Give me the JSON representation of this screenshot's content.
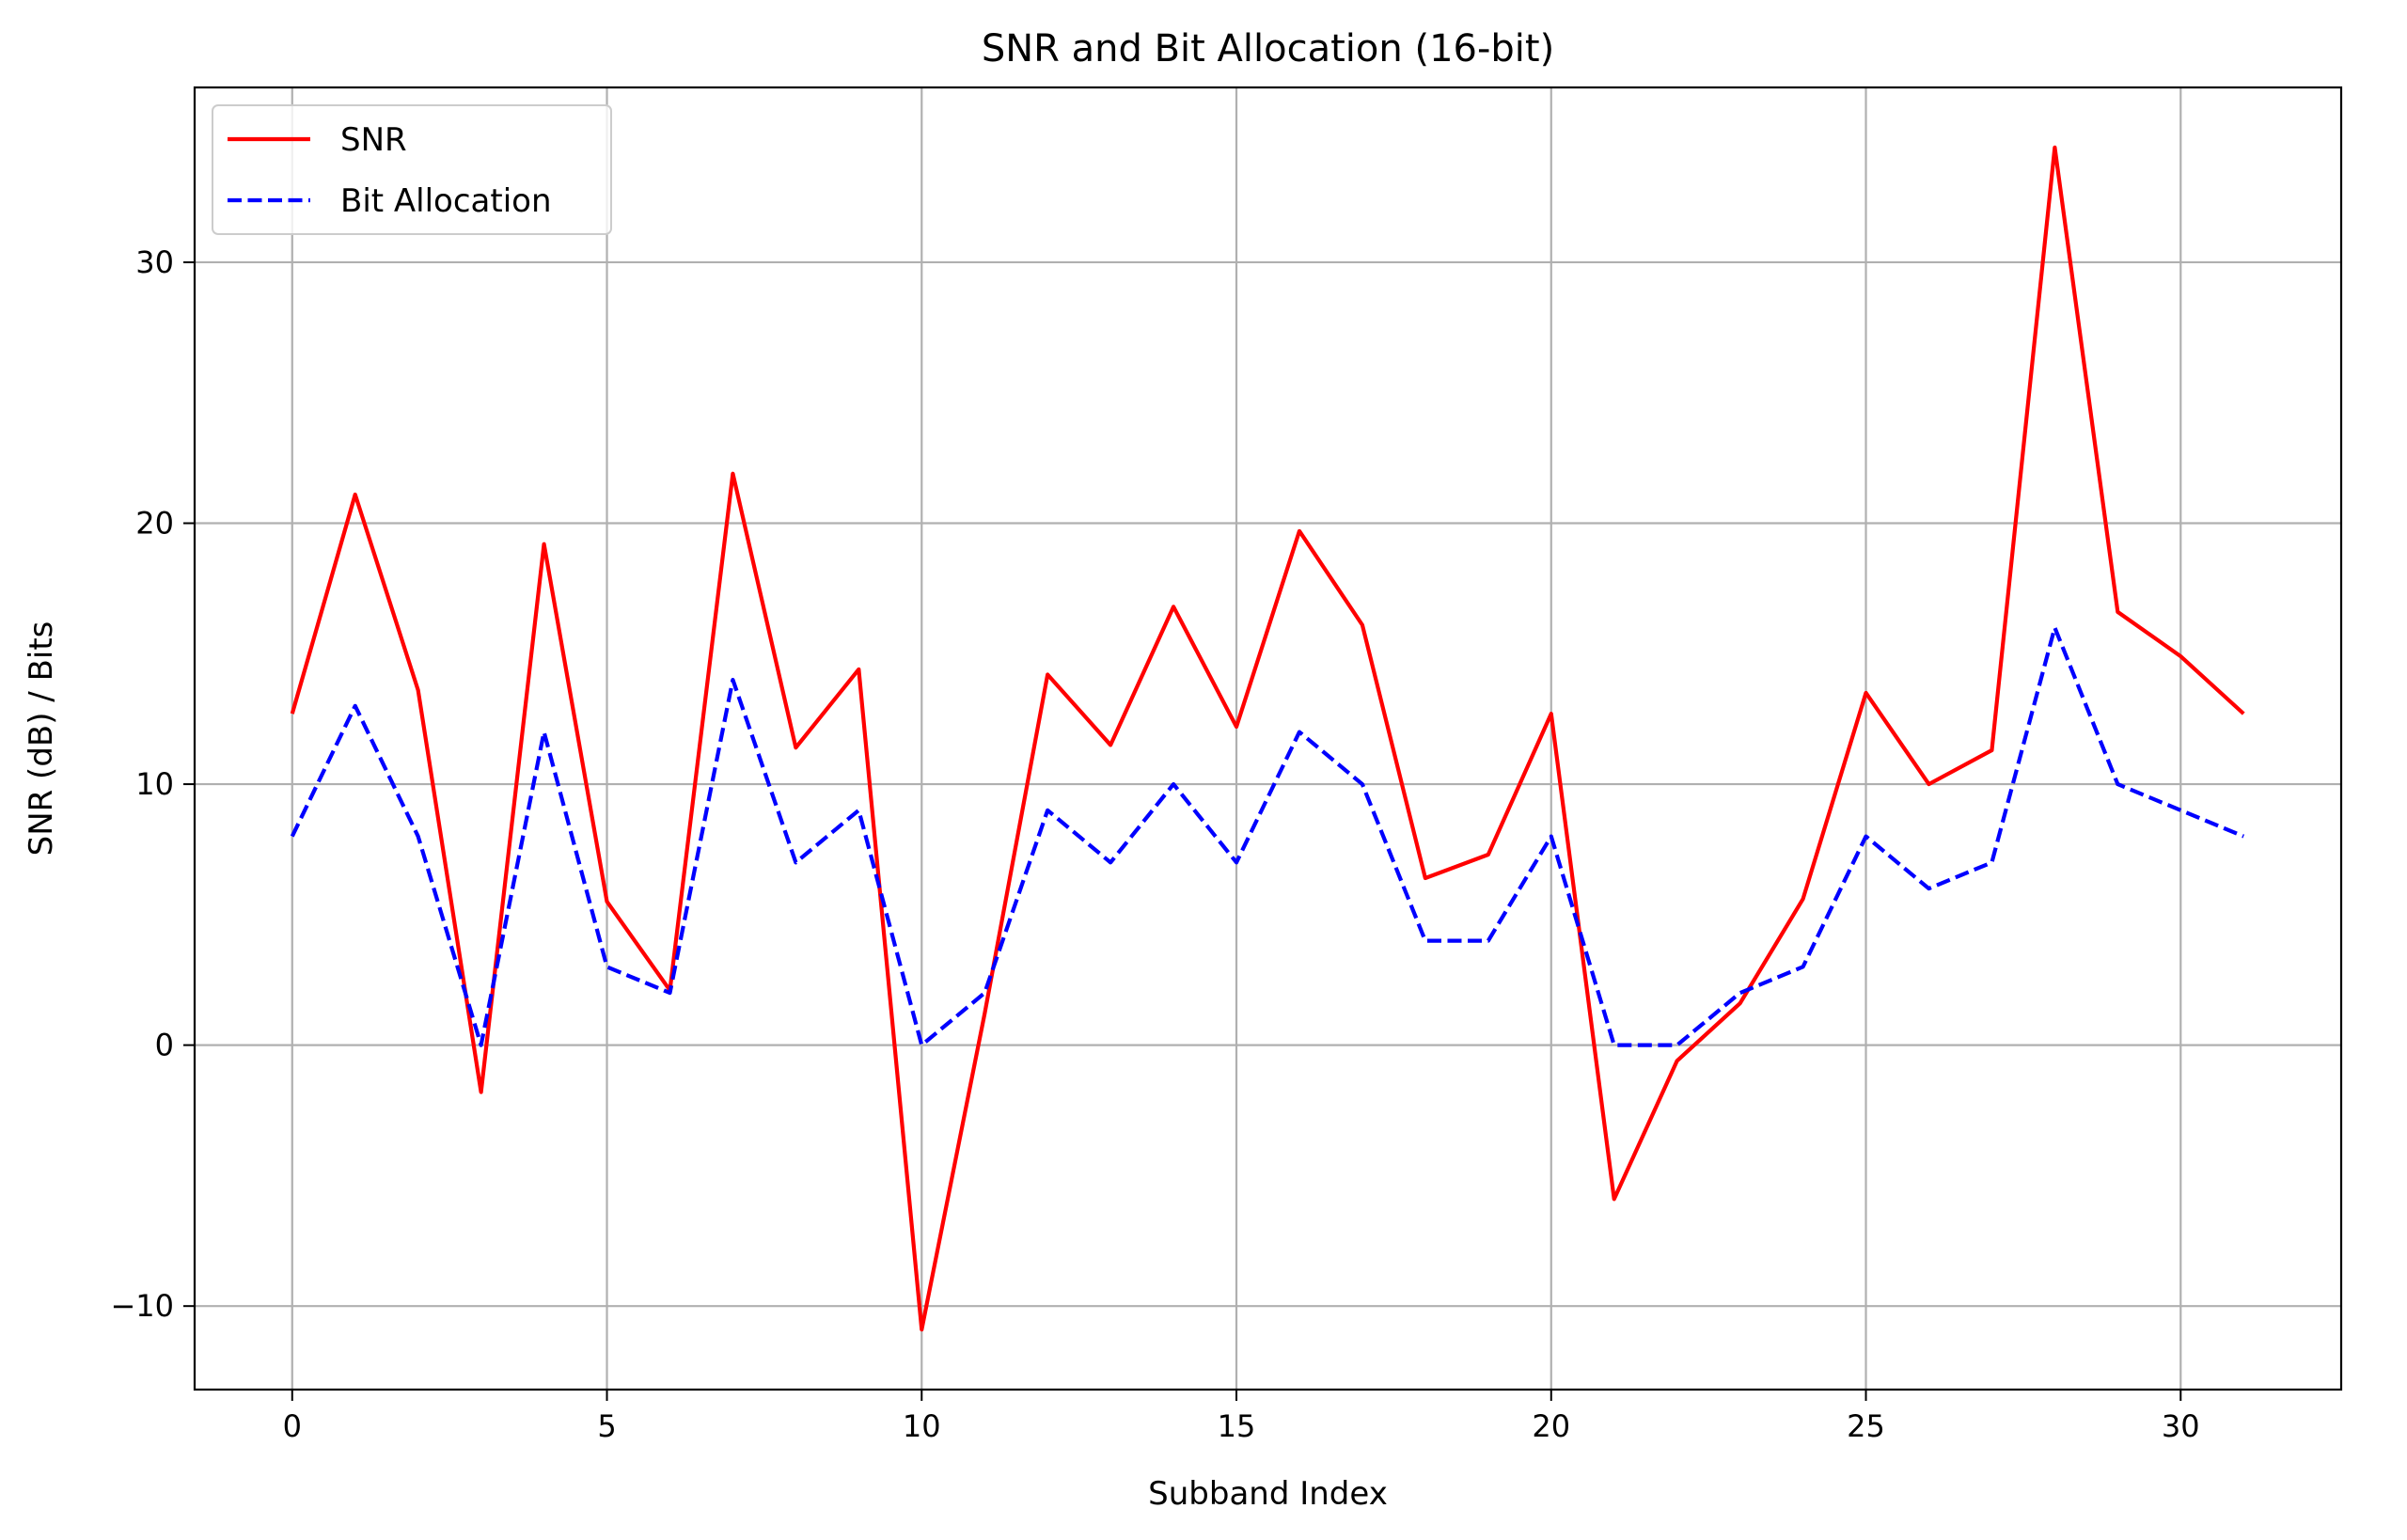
{
  "chart_data": {
    "type": "line",
    "title": "SNR and Bit Allocation (16-bit)",
    "xlabel": "Subband Index",
    "ylabel": "SNR (dB) / Bits",
    "xlim": [
      -1.55,
      32.55
    ],
    "ylim": [
      -13.2,
      36.7
    ],
    "xticks": [
      0,
      5,
      10,
      15,
      20,
      25,
      30
    ],
    "yticks": [
      -10,
      0,
      10,
      20,
      30
    ],
    "xtick_labels": [
      "0",
      "5",
      "10",
      "15",
      "20",
      "25",
      "30"
    ],
    "ytick_labels": [
      "−10",
      "0",
      "10",
      "20",
      "30"
    ],
    "grid": true,
    "legend": "upper-left",
    "x": [
      0,
      1,
      2,
      3,
      4,
      5,
      6,
      7,
      8,
      9,
      10,
      11,
      12,
      13,
      14,
      15,
      16,
      17,
      18,
      19,
      20,
      21,
      22,
      23,
      24,
      25,
      26,
      27,
      28,
      29,
      30,
      31
    ],
    "series": [
      {
        "name": "SNR",
        "color": "#ff0000",
        "style": "solid",
        "values": [
          12.7,
          21.1,
          13.6,
          -1.8,
          19.2,
          5.5,
          2.1,
          21.9,
          11.4,
          14.4,
          -10.9,
          1.2,
          14.2,
          11.5,
          16.8,
          12.2,
          19.7,
          16.1,
          6.4,
          7.3,
          12.7,
          -5.9,
          -0.6,
          1.6,
          5.6,
          13.5,
          10.0,
          11.3,
          34.4,
          16.6,
          14.9,
          12.7
        ]
      },
      {
        "name": "Bit Allocation",
        "color": "#0000ff",
        "style": "dashed",
        "values": [
          8,
          13,
          8,
          0,
          12,
          3,
          2,
          14,
          7,
          9,
          0,
          2,
          9,
          7,
          10,
          7,
          12,
          10,
          4,
          4,
          8,
          0,
          0,
          2,
          3,
          8,
          6,
          7,
          16,
          10,
          9,
          8
        ]
      }
    ]
  }
}
